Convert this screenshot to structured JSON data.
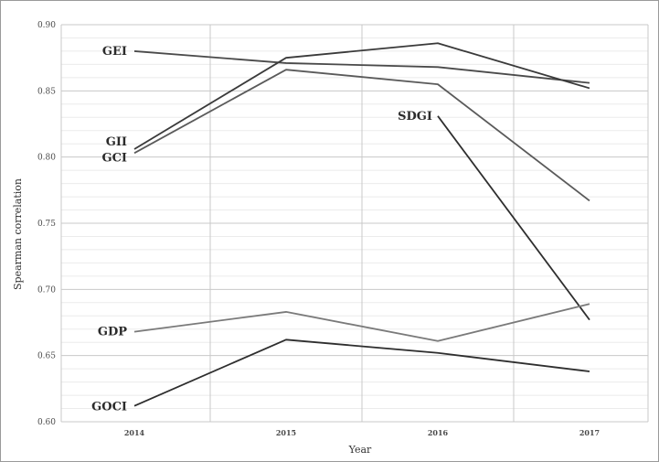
{
  "chart_data": {
    "type": "line",
    "title": "",
    "xlabel": "Year",
    "ylabel": "Spearman correlation",
    "x": [
      2014,
      2015,
      2016,
      2017
    ],
    "x_tick_labels": [
      "2014",
      "2015",
      "2016",
      "2017"
    ],
    "ylim": [
      0.6,
      0.9
    ],
    "y_ticks": [
      0.6,
      0.65,
      0.7,
      0.75,
      0.8,
      0.85,
      0.9
    ],
    "y_tick_labels": [
      "0.60",
      "0.65",
      "0.70",
      "0.75",
      "0.80",
      "0.85",
      "0.90"
    ],
    "grid": true,
    "legend": "none",
    "series": [
      {
        "name": "GEI",
        "values": [
          0.88,
          0.871,
          0.868,
          0.856
        ],
        "color": "#4a4a4a"
      },
      {
        "name": "GII",
        "values": [
          0.806,
          0.875,
          0.886,
          0.852
        ],
        "color": "#3a3a3a"
      },
      {
        "name": "GCI",
        "values": [
          0.803,
          0.866,
          0.855,
          0.767
        ],
        "color": "#5a5a5a"
      },
      {
        "name": "SDGI",
        "values": [
          null,
          null,
          0.831,
          0.677
        ],
        "color": "#2e2e2e"
      },
      {
        "name": "GDP",
        "values": [
          0.668,
          0.683,
          0.661,
          0.689
        ],
        "color": "#7a7a7a"
      },
      {
        "name": "GOCI",
        "values": [
          0.612,
          0.662,
          0.652,
          0.638
        ],
        "color": "#2e2e2e"
      }
    ]
  }
}
